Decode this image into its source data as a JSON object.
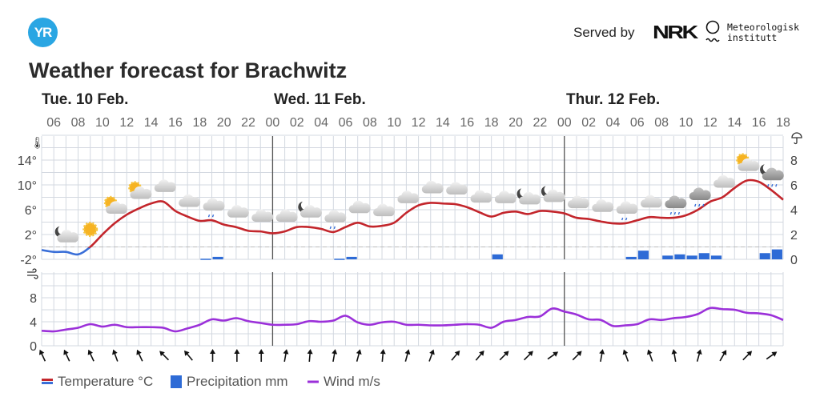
{
  "header": {
    "logo_text": "YR",
    "served_by": "Served by",
    "nrk_logo": "NRK",
    "met_logo_line1": "Meteorologisk",
    "met_logo_line2": "institutt"
  },
  "title": "Weather forecast for Brachwitz",
  "days": [
    "Tue. 10 Feb.",
    "Wed. 11 Feb.",
    "Thur. 12 Feb."
  ],
  "legend": {
    "temperature": "Temperature °C",
    "precipitation": "Precipitation mm",
    "wind": "Wind m/s"
  },
  "colors": {
    "temp_warm": "#c3262c",
    "temp_cold": "#3a6fd8",
    "precip": "#2e6bd6",
    "wind": "#9b30d9",
    "grid": "#d3d8e0"
  },
  "chart_data": {
    "type": "line",
    "start_hour": "Tue 05:00",
    "hour_labels": [
      "06",
      "08",
      "10",
      "12",
      "14",
      "16",
      "18",
      "20",
      "22",
      "00",
      "02",
      "04",
      "06",
      "08",
      "10",
      "12",
      "14",
      "16",
      "18",
      "20",
      "22",
      "00",
      "02",
      "04",
      "06",
      "08",
      "10",
      "12",
      "14",
      "16",
      "18"
    ],
    "temperature": {
      "unit": "°C",
      "ylim": [
        -2,
        18
      ],
      "tick_labels": [
        "14°",
        "10°",
        "6°",
        "2°",
        "-2°"
      ],
      "values": [
        -0.5,
        -0.8,
        -0.8,
        -1.2,
        0,
        2,
        3.8,
        5.2,
        6.2,
        7,
        7.3,
        5.8,
        4.9,
        4.2,
        4.3,
        3.6,
        3.2,
        2.6,
        2.5,
        2.2,
        2.5,
        3.2,
        3.2,
        2.9,
        2.4,
        3.2,
        3.9,
        3.3,
        3.4,
        3.9,
        5.5,
        6.7,
        7.1,
        7.0,
        6.9,
        6.4,
        5.6,
        4.9,
        5.5,
        5.7,
        5.3,
        5.8,
        5.7,
        5.4,
        4.7,
        4.5,
        4.1,
        3.8,
        3.8,
        4.3,
        4.8,
        4.7,
        4.7,
        5.1,
        6.0,
        7.3,
        8.0,
        9.5,
        10.7,
        10.5,
        9.2,
        7.6
      ]
    },
    "precipitation": {
      "unit": "mm",
      "ylim": [
        0,
        10
      ],
      "tick_labels": [
        "8",
        "6",
        "4",
        "2",
        "0"
      ],
      "bars": [
        {
          "hour": 13,
          "value": 0.05
        },
        {
          "hour": 14,
          "value": 0.2
        },
        {
          "hour": 24,
          "value": 0.05
        },
        {
          "hour": 25,
          "value": 0.2
        },
        {
          "hour": 37,
          "value": 0.4
        },
        {
          "hour": 48,
          "value": 0.2
        },
        {
          "hour": 49,
          "value": 0.7
        },
        {
          "hour": 51,
          "value": 0.3
        },
        {
          "hour": 52,
          "value": 0.4
        },
        {
          "hour": 53,
          "value": 0.3
        },
        {
          "hour": 54,
          "value": 0.5
        },
        {
          "hour": 55,
          "value": 0.3
        },
        {
          "hour": 59,
          "value": 0.5
        },
        {
          "hour": 60,
          "value": 0.8
        }
      ]
    },
    "wind": {
      "unit": "m/s",
      "ylim": [
        0,
        12
      ],
      "tick_labels": [
        "8",
        "4",
        "0"
      ],
      "values": [
        2.5,
        2.4,
        2.7,
        3.0,
        3.6,
        3.2,
        3.5,
        3.1,
        3.1,
        3.1,
        3.0,
        2.4,
        2.9,
        3.5,
        4.4,
        4.2,
        4.6,
        4.1,
        3.8,
        3.5,
        3.5,
        3.6,
        4.1,
        4.0,
        4.2,
        5.0,
        3.9,
        3.5,
        3.9,
        4.0,
        3.5,
        3.5,
        3.4,
        3.4,
        3.5,
        3.6,
        3.5,
        3.0,
        4.0,
        4.3,
        4.8,
        4.9,
        6.2,
        5.7,
        5.2,
        4.4,
        4.3,
        3.3,
        3.4,
        3.6,
        4.4,
        4.3,
        4.6,
        4.8,
        5.3,
        6.3,
        6.1,
        6.0,
        5.5,
        5.4,
        5.1,
        4.3,
        4.6
      ],
      "direction_arrows_deg": [
        -25,
        -25,
        -25,
        -20,
        -25,
        -45,
        -40,
        0,
        0,
        0,
        10,
        5,
        10,
        15,
        5,
        15,
        20,
        40,
        40,
        45,
        45,
        55,
        45,
        10,
        -20,
        -20,
        -10,
        15,
        30,
        45,
        55
      ]
    },
    "symbols": [
      "partly-cloudy-night",
      "clear-day",
      "fair-day",
      "fair-day",
      "cloudy",
      "cloudy",
      "light-rain",
      "cloudy",
      "cloudy",
      "cloudy",
      "partly-cloudy-night",
      "light-rain",
      "cloudy",
      "cloudy",
      "cloudy",
      "cloudy",
      "cloudy",
      "cloudy",
      "cloudy",
      "partly-cloudy-night",
      "fair-night",
      "cloudy",
      "cloudy",
      "light-rain",
      "cloudy",
      "rain",
      "rain",
      "cloudy",
      "partly-cloudy-day",
      "rain-night"
    ]
  }
}
